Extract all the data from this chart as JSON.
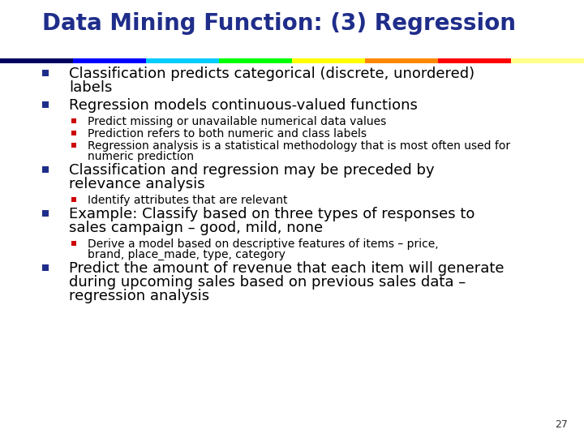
{
  "title": "Data Mining Function: (3) Regression",
  "title_color": "#1F2D8A",
  "title_fontsize": 20,
  "background_color": "#FFFFFF",
  "bullet_color": "#1F2D8A",
  "sub_bullet_color": "#CC0000",
  "page_number": "27",
  "rainbow_colors": [
    "#000060",
    "#0000FF",
    "#00CCFF",
    "#00FF00",
    "#FFFF00",
    "#FF8800",
    "#FF0000",
    "#FFFF88"
  ],
  "content": [
    {
      "level": 1,
      "text": "Classification predicts categorical (discrete, unordered)\nlabels",
      "fontsize": 13
    },
    {
      "level": 1,
      "text": "Regression models continuous-valued functions",
      "fontsize": 13
    },
    {
      "level": 2,
      "text": "Predict missing or unavailable numerical data values",
      "fontsize": 10
    },
    {
      "level": 2,
      "text": "Prediction refers to both numeric and class labels",
      "fontsize": 10
    },
    {
      "level": 2,
      "text": "Regression analysis is a statistical methodology that is most often used for\nnumeric prediction",
      "fontsize": 10
    },
    {
      "level": 1,
      "text": "Classification and regression may be preceded by\nrelevance analysis",
      "fontsize": 13
    },
    {
      "level": 2,
      "text": "Identify attributes that are relevant",
      "fontsize": 10
    },
    {
      "level": 1,
      "text": "Example: Classify based on three types of responses to\nsales campaign – good, mild, none",
      "fontsize": 13
    },
    {
      "level": 2,
      "text": "Derive a model based on descriptive features of items – price,\nbrand, place_made, type, category",
      "fontsize": 10
    },
    {
      "level": 1,
      "text": "Predict the amount of revenue that each item will generate\nduring upcoming sales based on previous sales data –\nregression analysis",
      "fontsize": 13
    }
  ]
}
